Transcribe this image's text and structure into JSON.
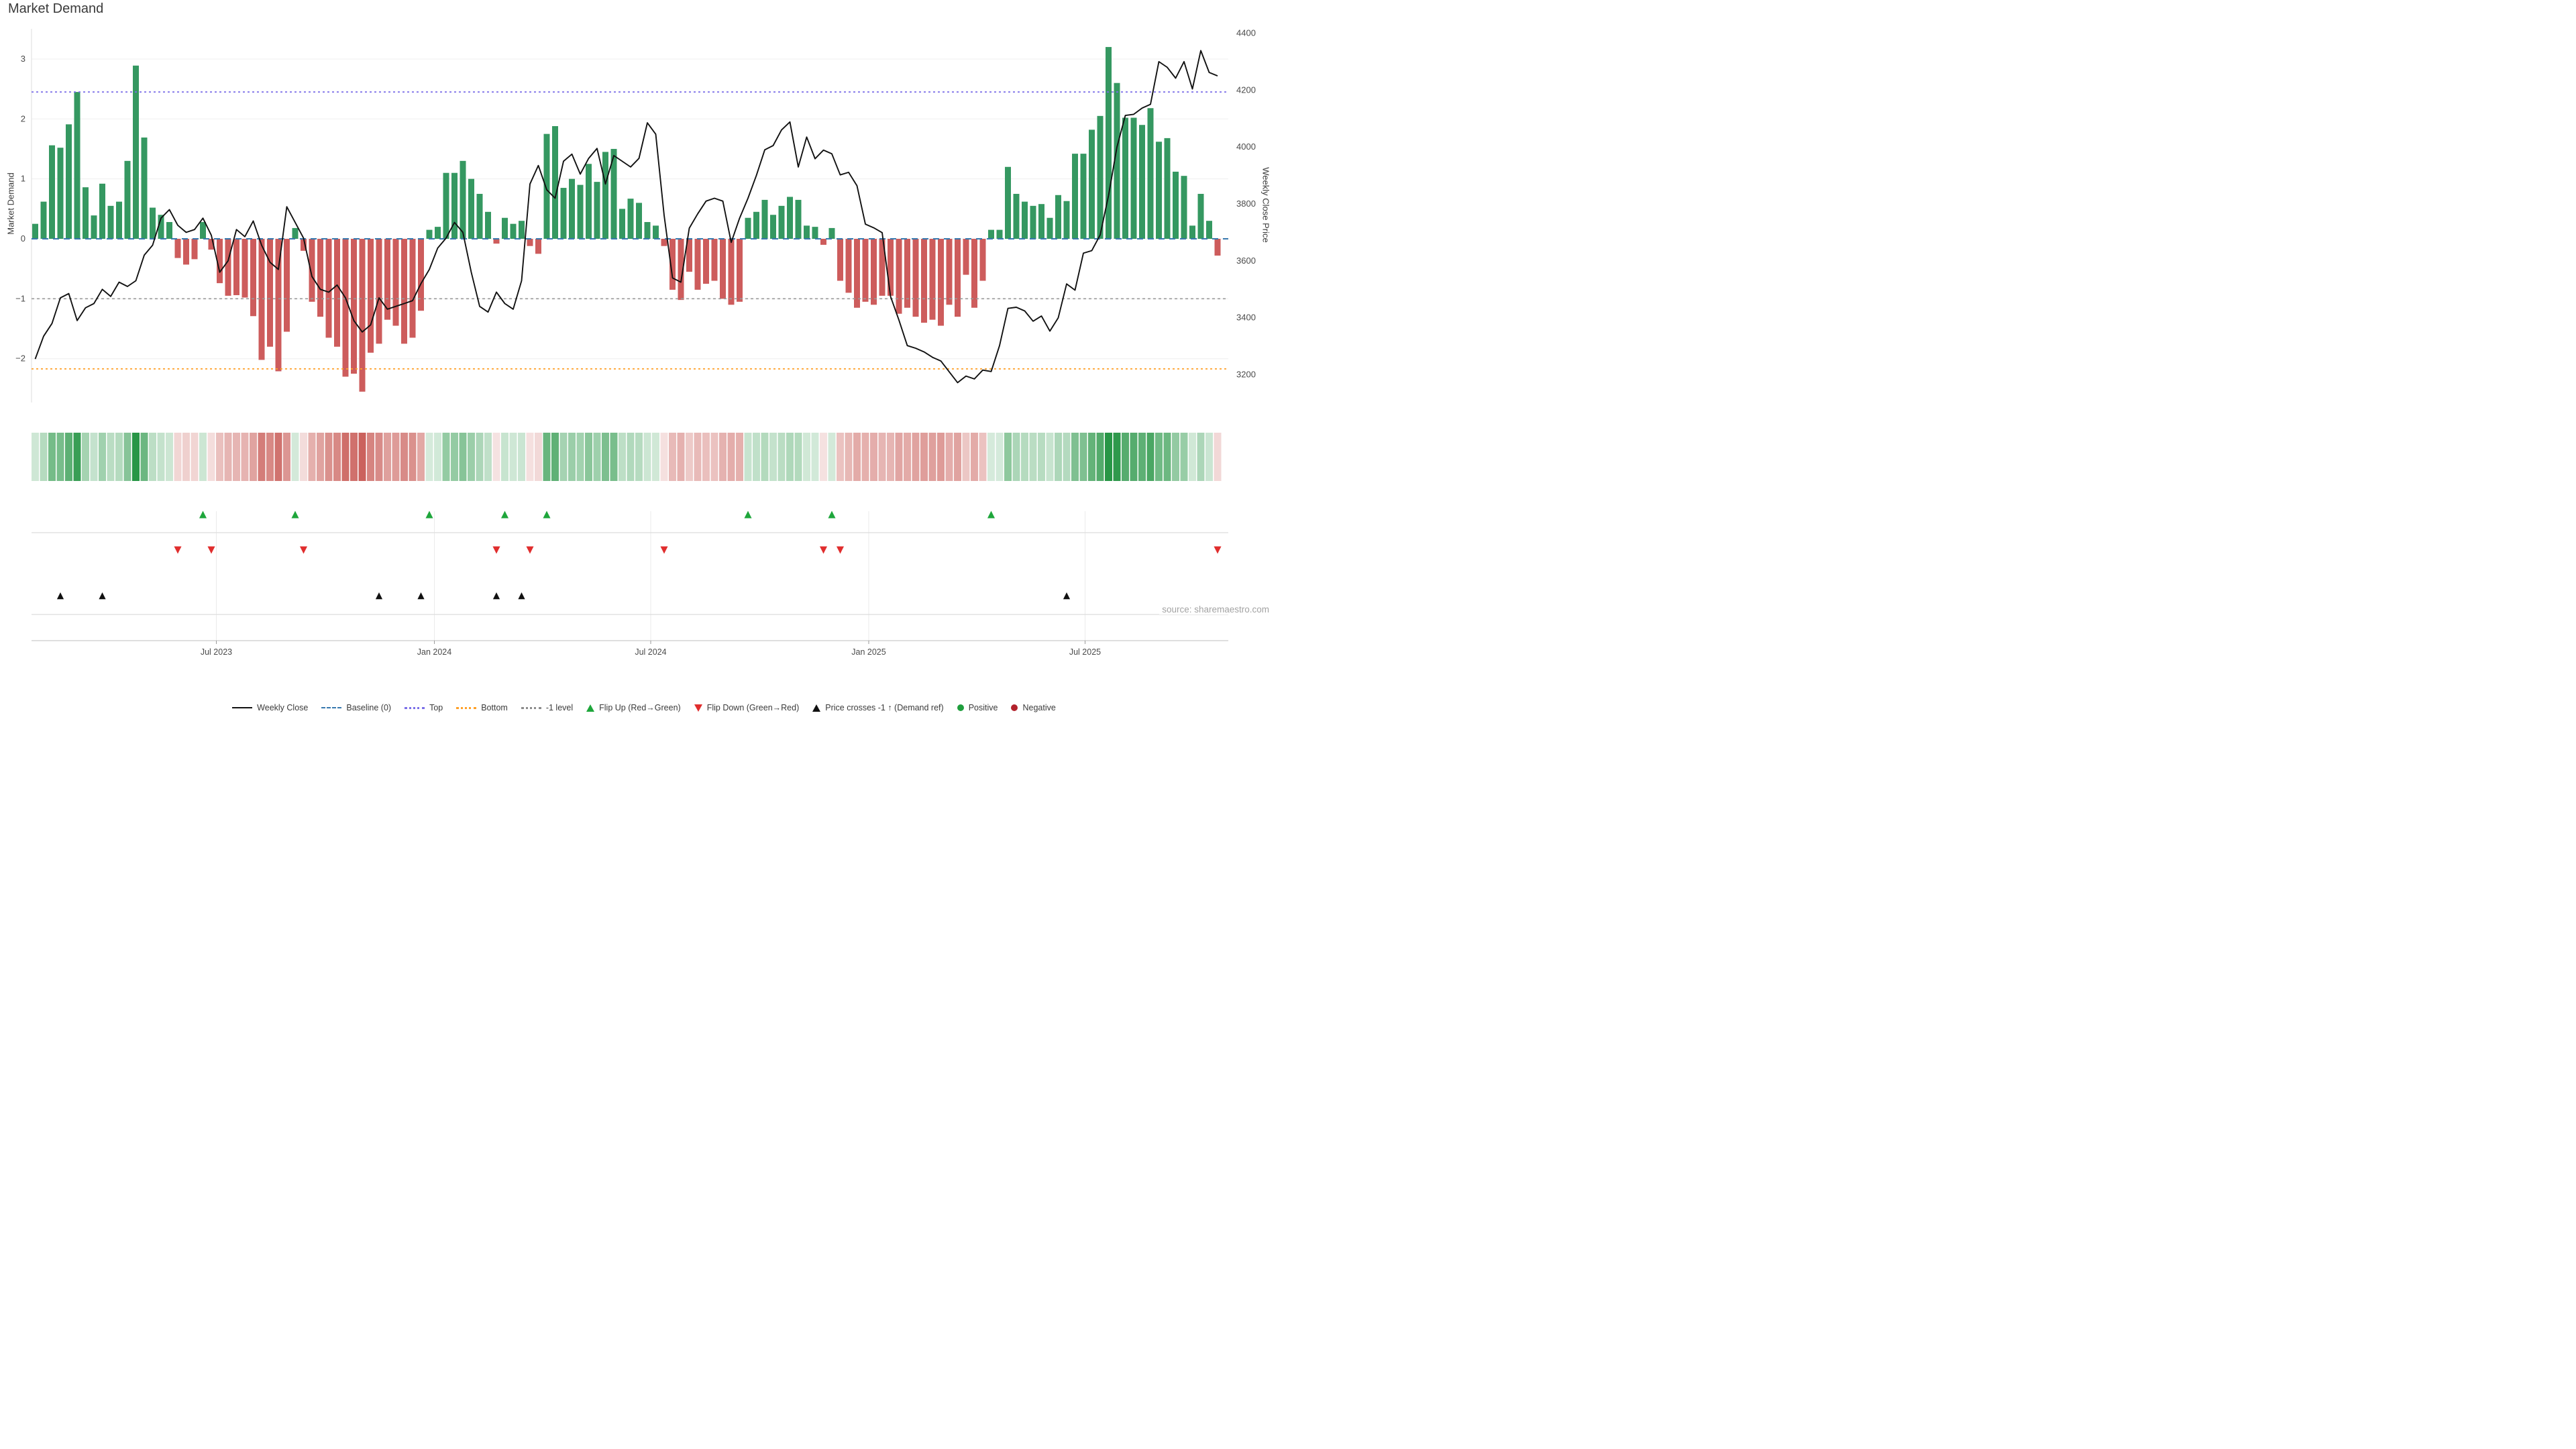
{
  "title": "Market Demand",
  "source": "source: sharemaestro.com",
  "axes": {
    "left": {
      "label": "Market Demand",
      "ticks": [
        3,
        2,
        1,
        0,
        -1,
        -2
      ],
      "range": [
        -2.9,
        3.5
      ]
    },
    "right": {
      "label": "Weekly Close Price",
      "ticks": [
        4400,
        4200,
        4000,
        3800,
        3600,
        3400,
        3200
      ],
      "range": [
        3080,
        4460
      ]
    },
    "x": {
      "ticks": [
        {
          "label": "Jul 2023",
          "week": 21.6
        },
        {
          "label": "Jan 2024",
          "week": 47.6
        },
        {
          "label": "Jul 2024",
          "week": 73.4
        },
        {
          "label": "Jan 2025",
          "week": 99.4
        },
        {
          "label": "Jul 2025",
          "week": 125.2
        }
      ]
    }
  },
  "ref_lines": {
    "baseline": {
      "label": "Baseline (0)",
      "value": 0,
      "color": "#3778ae"
    },
    "top": {
      "label": "Top",
      "value": 2.45,
      "color": "#7b6fe8"
    },
    "bottom": {
      "label": "Bottom",
      "value": -2.17,
      "color": "#ffa028"
    },
    "minus_one": {
      "label": "-1 level",
      "value": -1,
      "color": "#999999"
    }
  },
  "colors": {
    "bar_positive": "#359861",
    "bar_negative": "#cd5c5c",
    "price_line": "#111111",
    "flip_up": "#1ea63b",
    "flip_down": "#e02d2d",
    "price_cross": "#111111",
    "positive_dot": "#1f9e3d",
    "negative_dot": "#b2222c",
    "grid": "#efefef",
    "row_grid": "#dcdcdc",
    "axis_line": "#c9c9c9",
    "tick_text": "#4a4a4a"
  },
  "legend": {
    "items": [
      {
        "type": "line",
        "label": "Weekly Close",
        "color": "#111111"
      },
      {
        "type": "dash",
        "label": "Baseline (0)",
        "color": "#3778ae"
      },
      {
        "type": "dot",
        "label": "Top",
        "color": "#7b6fe8"
      },
      {
        "type": "dot",
        "label": "Bottom",
        "color": "#ffa028"
      },
      {
        "type": "dot",
        "label": "-1 level",
        "color": "#8c8c8c"
      },
      {
        "type": "tri-up",
        "label": "Flip Up (Red→Green)",
        "color": "#1ea63b"
      },
      {
        "type": "tri-down",
        "label": "Flip Down (Green→Red)",
        "color": "#e02d2d"
      },
      {
        "type": "tri-up",
        "label": "Price crosses -1 ↑ (Demand ref)",
        "color": "#111111"
      },
      {
        "type": "circle",
        "label": "Positive",
        "color": "#1f9e3d"
      },
      {
        "type": "circle",
        "label": "Negative",
        "color": "#b2222c"
      }
    ]
  },
  "chart_data": {
    "type": "bar",
    "subtype": "weekly bar + line dual-axis with heatmap strip and event marker rows",
    "title": "Market Demand",
    "xlabel": "",
    "ylabel": "Market Demand",
    "ylabel_right": "Weekly Close Price",
    "x_unit": "week",
    "n_weeks": 142,
    "ylim_left": [
      -2.9,
      3.5
    ],
    "ylim_right": [
      3080,
      4460
    ],
    "grid": "horizontal, light",
    "legend_position": "bottom center",
    "series": [
      {
        "name": "Market Demand",
        "type": "bar",
        "axis": "left",
        "values": [
          0.25,
          0.62,
          1.56,
          1.52,
          1.91,
          2.45,
          0.86,
          0.39,
          0.92,
          0.55,
          0.62,
          1.3,
          2.89,
          1.69,
          0.52,
          0.4,
          0.28,
          -0.32,
          -0.43,
          -0.34,
          0.28,
          -0.18,
          -0.74,
          -0.95,
          -0.94,
          -0.98,
          -1.29,
          -2.02,
          -1.8,
          -2.21,
          -1.55,
          0.18,
          -0.2,
          -1.05,
          -1.3,
          -1.65,
          -1.8,
          -2.3,
          -2.25,
          -2.55,
          -1.9,
          -1.75,
          -1.35,
          -1.45,
          -1.75,
          -1.65,
          -1.2,
          0.15,
          0.2,
          1.1,
          1.1,
          1.3,
          1.0,
          0.75,
          0.45,
          -0.08,
          0.35,
          0.25,
          0.3,
          -0.12,
          -0.25,
          1.75,
          1.88,
          0.85,
          1.0,
          0.9,
          1.25,
          0.95,
          1.45,
          1.5,
          0.5,
          0.67,
          0.6,
          0.28,
          0.22,
          -0.12,
          -0.85,
          -1.02,
          -0.55,
          -0.85,
          -0.75,
          -0.7,
          -1.0,
          -1.1,
          -1.05,
          0.35,
          0.45,
          0.65,
          0.4,
          0.55,
          0.7,
          0.65,
          0.22,
          0.2,
          -0.1,
          0.18,
          -0.7,
          -0.9,
          -1.15,
          -1.05,
          -1.1,
          -0.95,
          -0.95,
          -1.25,
          -1.15,
          -1.3,
          -1.4,
          -1.35,
          -1.45,
          -1.1,
          -1.3,
          -0.6,
          -1.15,
          -0.7,
          0.15,
          0.15,
          1.2,
          0.75,
          0.62,
          0.55,
          0.58,
          0.35,
          0.73,
          0.63,
          1.42,
          1.42,
          1.82,
          2.05,
          3.2,
          2.6,
          2.02,
          2.02,
          1.9,
          2.18,
          1.62,
          1.68,
          1.12,
          1.05,
          0.22,
          0.75,
          0.3,
          -0.28
        ]
      },
      {
        "name": "Weekly Close",
        "type": "line",
        "axis": "right",
        "values": [
          3255,
          3335,
          3380,
          3470,
          3485,
          3390,
          3435,
          3450,
          3500,
          3475,
          3525,
          3510,
          3530,
          3620,
          3655,
          3750,
          3780,
          3725,
          3700,
          3710,
          3750,
          3690,
          3560,
          3600,
          3710,
          3685,
          3740,
          3655,
          3595,
          3570,
          3790,
          3735,
          3680,
          3545,
          3500,
          3490,
          3515,
          3470,
          3390,
          3350,
          3375,
          3470,
          3430,
          3440,
          3450,
          3460,
          3520,
          3570,
          3645,
          3680,
          3735,
          3700,
          3560,
          3440,
          3420,
          3490,
          3450,
          3430,
          3530,
          3870,
          3935,
          3850,
          3820,
          3950,
          3975,
          3905,
          3960,
          3995,
          3870,
          3970,
          3950,
          3930,
          3960,
          4085,
          4045,
          3760,
          3540,
          3525,
          3715,
          3765,
          3810,
          3820,
          3810,
          3665,
          3750,
          3820,
          3900,
          3990,
          4005,
          4060,
          4088,
          3930,
          4035,
          3959,
          3989,
          3976,
          3902,
          3911,
          3864,
          3729,
          3716,
          3699,
          3475,
          3392,
          3302,
          3293,
          3280,
          3261,
          3248,
          3210,
          3172,
          3195,
          3185,
          3216,
          3211,
          3302,
          3433,
          3437,
          3424,
          3388,
          3406,
          3353,
          3400,
          3519,
          3497,
          3627,
          3636,
          3691,
          3830,
          4000,
          4111,
          4115,
          4137,
          4150,
          4300,
          4280,
          4242,
          4300,
          4204,
          4339,
          4262,
          4250
        ]
      }
    ],
    "heatmap_strip": "one cell per week; hue = sign of Market Demand (green positive / red negative), saturation = magnitude",
    "markers": {
      "flip_up_weeks": [
        20,
        31,
        47,
        56,
        61,
        85,
        95,
        114
      ],
      "flip_down_weeks": [
        17,
        21,
        32,
        55,
        59,
        75,
        94,
        96,
        141
      ],
      "price_cross_up_weeks": [
        3,
        8,
        41,
        46,
        55,
        58,
        123
      ]
    },
    "ref_levels": {
      "baseline": 0,
      "top": 2.45,
      "bottom": -2.17,
      "minus_one": -1
    }
  }
}
